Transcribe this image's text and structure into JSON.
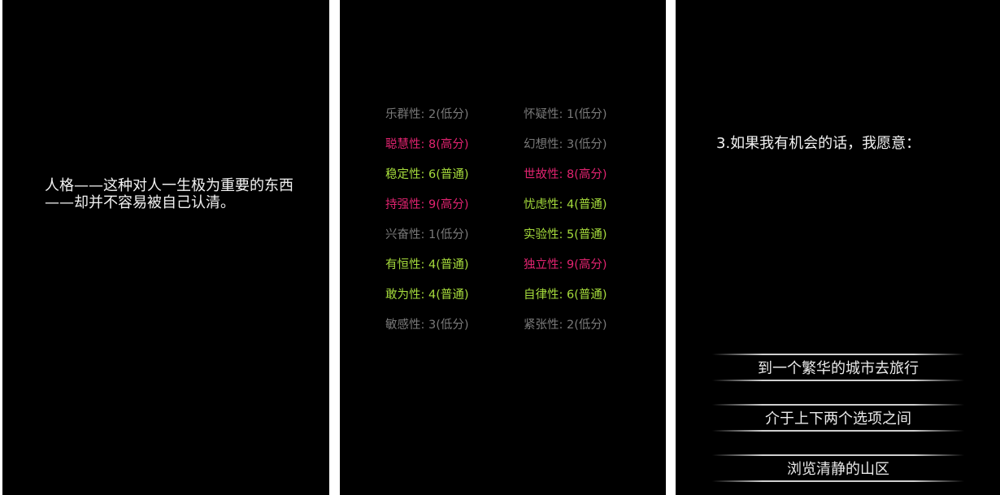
{
  "screens": [
    {
      "intro_text": "人格——这种对人一生极为重要的东西——却并不容易被自己认清。"
    },
    {
      "traits": [
        {
          "label": "乐群性: 2(低分)",
          "level": "低分",
          "color": "#7a7a7a"
        },
        {
          "label": "怀疑性: 1(低分)",
          "level": "低分",
          "color": "#7a7a7a"
        },
        {
          "label": "聪慧性: 8(高分)",
          "level": "高分",
          "color": "#e0236f"
        },
        {
          "label": "幻想性: 3(低分)",
          "level": "低分",
          "color": "#7a7a7a"
        },
        {
          "label": "稳定性: 6(普通)",
          "level": "普通",
          "color": "#a6dc3c"
        },
        {
          "label": "世故性: 8(高分)",
          "level": "高分",
          "color": "#e0236f"
        },
        {
          "label": "持强性: 9(高分)",
          "level": "高分",
          "color": "#e0236f"
        },
        {
          "label": "忧虑性: 4(普通)",
          "level": "普通",
          "color": "#a6dc3c"
        },
        {
          "label": "兴奋性: 1(低分)",
          "level": "低分",
          "color": "#7a7a7a"
        },
        {
          "label": "实验性: 5(普通)",
          "level": "普通",
          "color": "#a6dc3c"
        },
        {
          "label": "有恒性: 4(普通)",
          "level": "普通",
          "color": "#a6dc3c"
        },
        {
          "label": "独立性: 9(高分)",
          "level": "高分",
          "color": "#e0236f"
        },
        {
          "label": "敢为性: 4(普通)",
          "level": "普通",
          "color": "#a6dc3c"
        },
        {
          "label": "自律性: 6(普通)",
          "level": "普通",
          "color": "#a6dc3c"
        },
        {
          "label": "敏感性: 3(低分)",
          "level": "低分",
          "color": "#7a7a7a"
        },
        {
          "label": "紧张性: 2(低分)",
          "level": "低分",
          "color": "#7a7a7a"
        }
      ]
    },
    {
      "question": "3.如果我有机会的话，我愿意：",
      "options": [
        "到一个繁华的城市去旅行",
        "介于上下两个选项之间",
        "浏览清静的山区"
      ]
    }
  ]
}
